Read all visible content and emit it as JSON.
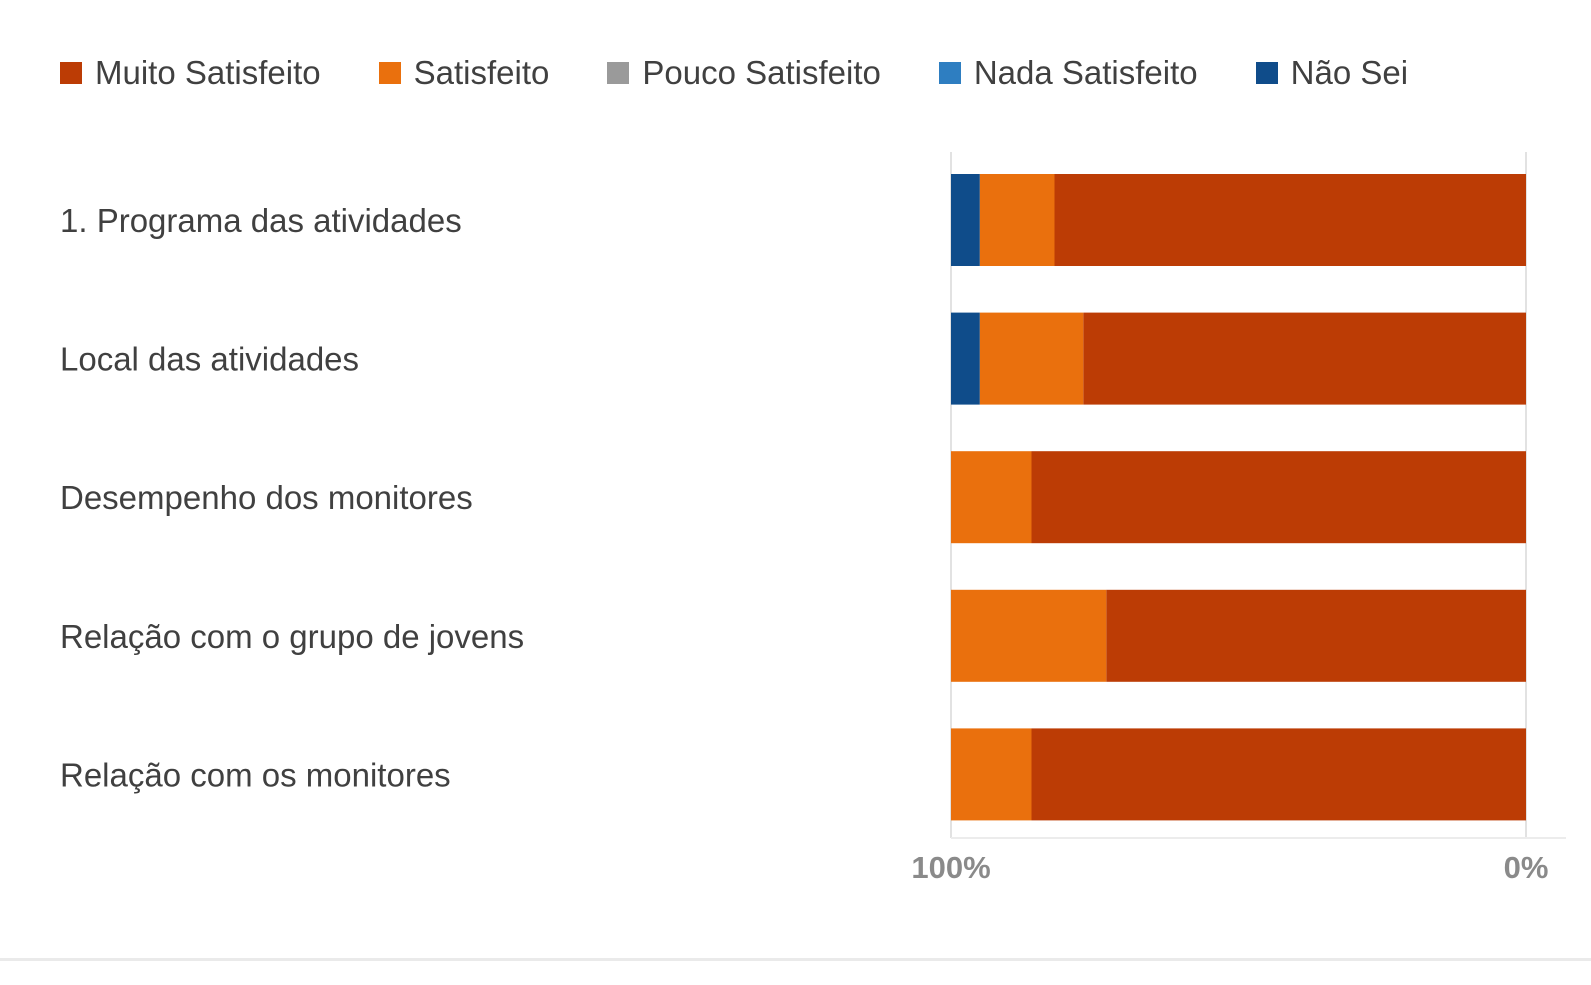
{
  "chart_data": {
    "type": "bar",
    "orientation": "horizontal",
    "stacked": true,
    "percent_scale": true,
    "x_direction": "reversed",
    "categories": [
      "1. Programa das atividades",
      "Local das atividades",
      "Desempenho dos monitores",
      "Relação com o grupo de jovens",
      "Relação com os monitores"
    ],
    "series": [
      {
        "name": "Muito Satisfeito",
        "color": "#BC3C05",
        "values": [
          82,
          77,
          86,
          73,
          86
        ]
      },
      {
        "name": "Satisfeito",
        "color": "#EA700D",
        "values": [
          13,
          18,
          14,
          27,
          14
        ]
      },
      {
        "name": "Pouco Satisfeito",
        "color": "#9A9A9A",
        "values": [
          0,
          0,
          0,
          0,
          0
        ]
      },
      {
        "name": "Nada Satisfeito",
        "color": "#2E7EC1",
        "values": [
          0,
          0,
          0,
          0,
          0
        ]
      },
      {
        "name": "Não Sei",
        "color": "#0F4C8A",
        "values": [
          5,
          5,
          0,
          0,
          0
        ]
      }
    ],
    "xlim": [
      0,
      100
    ],
    "x_tick_labels": [
      "100%",
      "0%"
    ],
    "legend_position": "top",
    "grid": false,
    "axis_color": "#e2e2e2",
    "tick_label_color": "#8a8a8a"
  }
}
